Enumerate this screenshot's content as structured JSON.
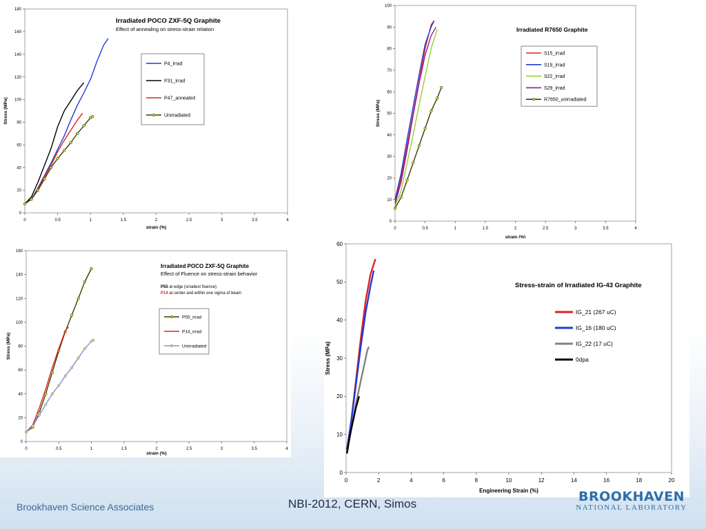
{
  "footer": {
    "left": "Brookhaven Science Associates",
    "center": "NBI-2012, CERN, Simos",
    "logo_main": "BROOKHAVEN",
    "logo_sub": "NATIONAL LABORATORY"
  },
  "chart_data": [
    {
      "type": "line",
      "title": "Irradiated POCO ZXF-5Q Graphite",
      "subtitle": "Effect of annealing on stress-strain relation",
      "xlabel": "strain (%)",
      "ylabel": "Stress (MPa)",
      "xlim": [
        0,
        4
      ],
      "ylim": [
        0,
        180
      ],
      "xticks": [
        "0",
        "0.5",
        "1",
        "1.5",
        "2",
        "2.5",
        "3",
        "3.5",
        "4"
      ],
      "yticks": [
        "0",
        "20",
        "40",
        "60",
        "80",
        "100",
        "120",
        "140",
        "160",
        "180"
      ],
      "legend_position": "upper-center",
      "series": [
        {
          "name": "P4_irrad",
          "color": "#1f3bd6",
          "marker": false,
          "points": [
            [
              0,
              8
            ],
            [
              0.1,
              12
            ],
            [
              0.2,
              22
            ],
            [
              0.3,
              33
            ],
            [
              0.4,
              44
            ],
            [
              0.5,
              56
            ],
            [
              0.6,
              68
            ],
            [
              0.7,
              82
            ],
            [
              0.8,
              95
            ],
            [
              0.9,
              106
            ],
            [
              1.0,
              118
            ],
            [
              1.1,
              134
            ],
            [
              1.2,
              148
            ],
            [
              1.27,
              154
            ]
          ]
        },
        {
          "name": "P31_irrad",
          "color": "#000000",
          "marker": false,
          "points": [
            [
              0,
              8
            ],
            [
              0.1,
              14
            ],
            [
              0.2,
              27
            ],
            [
              0.3,
              42
            ],
            [
              0.4,
              57
            ],
            [
              0.5,
              76
            ],
            [
              0.6,
              90
            ],
            [
              0.7,
              99
            ],
            [
              0.8,
              108
            ],
            [
              0.9,
              115
            ]
          ]
        },
        {
          "name": "P47_annealed",
          "color": "#e02020",
          "marker": false,
          "points": [
            [
              0,
              8
            ],
            [
              0.1,
              12
            ],
            [
              0.2,
              21
            ],
            [
              0.3,
              32
            ],
            [
              0.4,
              42
            ],
            [
              0.5,
              54
            ],
            [
              0.6,
              64
            ],
            [
              0.7,
              73
            ],
            [
              0.8,
              82
            ],
            [
              0.88,
              88
            ]
          ]
        },
        {
          "name": "Unirradiated",
          "color": "#3a3a00",
          "marker": true,
          "points": [
            [
              0,
              8
            ],
            [
              0.1,
              12
            ],
            [
              0.2,
              20
            ],
            [
              0.3,
              30
            ],
            [
              0.4,
              40
            ],
            [
              0.5,
              48
            ],
            [
              0.6,
              55
            ],
            [
              0.7,
              62
            ],
            [
              0.8,
              70
            ],
            [
              0.9,
              77
            ],
            [
              1.0,
              84
            ],
            [
              1.03,
              85
            ]
          ]
        }
      ]
    },
    {
      "type": "line",
      "title": "Irradiated R7650 Graphite",
      "subtitle": "",
      "xlabel": "strain (%)",
      "ylabel": "Stress (MPa)",
      "xlim": [
        0,
        4
      ],
      "ylim": [
        0,
        100
      ],
      "xticks": [
        "0",
        "0.5",
        "1",
        "1.5",
        "2",
        "2.5",
        "3",
        "3.5",
        "4"
      ],
      "yticks": [
        "0",
        "10",
        "20",
        "30",
        "40",
        "50",
        "60",
        "70",
        "80",
        "90",
        "100"
      ],
      "legend_position": "upper-right",
      "series": [
        {
          "name": "S15_irrad",
          "color": "#e02020",
          "marker": false,
          "points": [
            [
              0,
              9
            ],
            [
              0.1,
              20
            ],
            [
              0.2,
              35
            ],
            [
              0.3,
              50
            ],
            [
              0.4,
              65
            ],
            [
              0.5,
              80
            ],
            [
              0.6,
              91
            ],
            [
              0.65,
              93
            ]
          ]
        },
        {
          "name": "S19_irrad",
          "color": "#1f3bd6",
          "marker": false,
          "points": [
            [
              0,
              10
            ],
            [
              0.1,
              22
            ],
            [
              0.2,
              38
            ],
            [
              0.3,
              53
            ],
            [
              0.4,
              68
            ],
            [
              0.5,
              82
            ],
            [
              0.6,
              90
            ],
            [
              0.65,
              93
            ]
          ]
        },
        {
          "name": "S22_irrad",
          "color": "#9acd32",
          "marker": false,
          "points": [
            [
              0,
              7
            ],
            [
              0.1,
              14
            ],
            [
              0.2,
              27
            ],
            [
              0.3,
              40
            ],
            [
              0.4,
              54
            ],
            [
              0.5,
              67
            ],
            [
              0.6,
              80
            ],
            [
              0.7,
              89
            ]
          ]
        },
        {
          "name": "S29_irrad",
          "color": "#8b1a9e",
          "marker": false,
          "points": [
            [
              0,
              8
            ],
            [
              0.1,
              18
            ],
            [
              0.2,
              33
            ],
            [
              0.3,
              49
            ],
            [
              0.4,
              64
            ],
            [
              0.5,
              77
            ],
            [
              0.6,
              86
            ],
            [
              0.68,
              90
            ]
          ]
        },
        {
          "name": "R7650_unirradiated",
          "color": "#3a3a00",
          "marker": true,
          "points": [
            [
              0,
              6
            ],
            [
              0.1,
              11
            ],
            [
              0.2,
              19
            ],
            [
              0.3,
              27
            ],
            [
              0.4,
              35
            ],
            [
              0.5,
              43
            ],
            [
              0.6,
              51
            ],
            [
              0.7,
              57
            ],
            [
              0.77,
              62
            ]
          ]
        }
      ]
    },
    {
      "type": "line",
      "title": "Irradiated POCO ZXF-5Q Graphite",
      "subtitle": "Effect of Fluence on stress-strain behavior",
      "notes": [
        {
          "label": "P55",
          "text": " at edge (smallest fluence)",
          "color": "#000000"
        },
        {
          "label": "P14",
          "text": " at center and within one sigma of beam",
          "color": "#e02020"
        }
      ],
      "xlabel": "strain (%)",
      "ylabel": "Stress (MPa)",
      "xlim": [
        0,
        4
      ],
      "ylim": [
        0,
        160
      ],
      "xticks": [
        "0",
        "0.5",
        "1",
        "1.5",
        "2",
        "2.5",
        "3",
        "3.5",
        "4"
      ],
      "yticks": [
        "0",
        "20",
        "40",
        "60",
        "80",
        "100",
        "120",
        "140",
        "160"
      ],
      "legend_position": "upper-center",
      "series": [
        {
          "name": "P55_irrad",
          "color": "#3a3a00",
          "marker": true,
          "points": [
            [
              0,
              8
            ],
            [
              0.1,
              12
            ],
            [
              0.2,
              24
            ],
            [
              0.3,
              40
            ],
            [
              0.4,
              58
            ],
            [
              0.5,
              76
            ],
            [
              0.6,
              92
            ],
            [
              0.7,
              106
            ],
            [
              0.8,
              120
            ],
            [
              0.9,
              134
            ],
            [
              1.0,
              145
            ]
          ]
        },
        {
          "name": "P14_irrad",
          "color": "#e02020",
          "marker": false,
          "points": [
            [
              0,
              8
            ],
            [
              0.1,
              14
            ],
            [
              0.2,
              28
            ],
            [
              0.3,
              44
            ],
            [
              0.4,
              62
            ],
            [
              0.5,
              78
            ],
            [
              0.6,
              93
            ],
            [
              0.65,
              96
            ]
          ]
        },
        {
          "name": "Unirradiated",
          "color": "#7f90d8",
          "marker": true,
          "points": [
            [
              0,
              8
            ],
            [
              0.1,
              13
            ],
            [
              0.2,
              22
            ],
            [
              0.3,
              31
            ],
            [
              0.4,
              40
            ],
            [
              0.5,
              47
            ],
            [
              0.6,
              55
            ],
            [
              0.7,
              62
            ],
            [
              0.8,
              70
            ],
            [
              0.9,
              78
            ],
            [
              1.0,
              84
            ],
            [
              1.03,
              85
            ]
          ]
        }
      ]
    },
    {
      "type": "line",
      "title": "Stress-strain of Irradiated IG-43 Graphite",
      "subtitle": "",
      "xlabel": "Engineering Strain (%)",
      "ylabel": "Stress (MPa)",
      "xlim": [
        0,
        20
      ],
      "ylim": [
        0,
        60
      ],
      "xticks": [
        "0",
        "2",
        "4",
        "6",
        "8",
        "10",
        "12",
        "14",
        "16",
        "18",
        "20"
      ],
      "yticks": [
        "0",
        "10",
        "20",
        "30",
        "40",
        "50",
        "60"
      ],
      "legend_position": "right",
      "series": [
        {
          "name": "IG_21 (267 uC)",
          "color": "#e02020",
          "marker": false,
          "points": [
            [
              0.05,
              6
            ],
            [
              0.3,
              13
            ],
            [
              0.6,
              24
            ],
            [
              0.9,
              35
            ],
            [
              1.2,
              45
            ],
            [
              1.5,
              52
            ],
            [
              1.8,
              56
            ]
          ]
        },
        {
          "name": "IG_16 (180 uC)",
          "color": "#1f3bd6",
          "marker": false,
          "points": [
            [
              0.05,
              6
            ],
            [
              0.3,
              13
            ],
            [
              0.6,
              23
            ],
            [
              0.9,
              33
            ],
            [
              1.2,
              42
            ],
            [
              1.5,
              49
            ],
            [
              1.7,
              53
            ]
          ]
        },
        {
          "name": "IG_22 (17 uC)",
          "color": "#808080",
          "marker": false,
          "points": [
            [
              0.05,
              5
            ],
            [
              0.3,
              11
            ],
            [
              0.6,
              18
            ],
            [
              0.9,
              24
            ],
            [
              1.1,
              28
            ],
            [
              1.3,
              32
            ],
            [
              1.4,
              33
            ]
          ]
        },
        {
          "name": "0dpa",
          "color": "#000000",
          "marker": false,
          "points": [
            [
              0.05,
              5
            ],
            [
              0.2,
              9
            ],
            [
              0.4,
              13
            ],
            [
              0.6,
              17
            ],
            [
              0.8,
              20
            ]
          ]
        }
      ]
    }
  ]
}
